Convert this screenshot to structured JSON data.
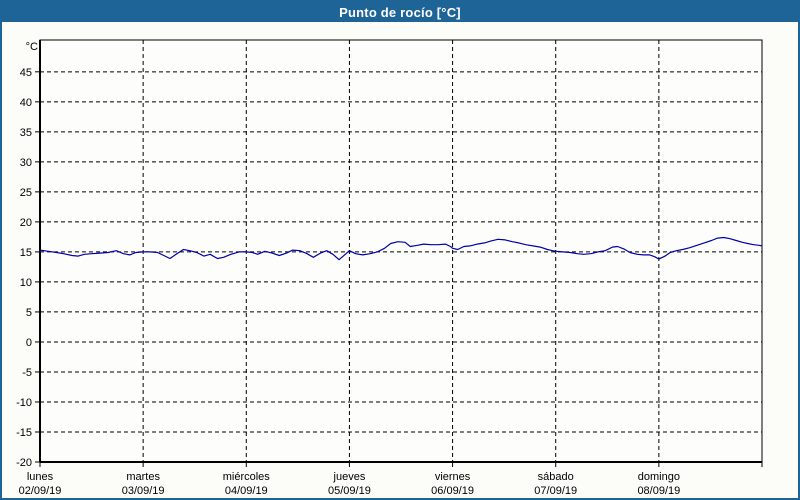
{
  "window": {
    "title": "Punto de rocío [°C]"
  },
  "colors": {
    "frame": "#1e6496",
    "title_text": "#ffffff",
    "background": "#fcfdf8",
    "plot_bg": "#fdfefb",
    "grid": "#000000",
    "line": "#0000aa"
  },
  "chart_data": {
    "type": "line",
    "title": "Punto de rocío [°C]",
    "ylabel": "°C",
    "legend": "none",
    "grid": "dashed",
    "ylim": [
      -20,
      50.3
    ],
    "yticks": {
      "min": -20,
      "max": 45,
      "step": 5
    },
    "xlim": [
      0,
      7
    ],
    "x_days": [
      {
        "name": "lunes",
        "date": "02/09/19"
      },
      {
        "name": "martes",
        "date": "03/09/19"
      },
      {
        "name": "miércoles",
        "date": "04/09/19"
      },
      {
        "name": "jueves",
        "date": "05/09/19"
      },
      {
        "name": "viernes",
        "date": "06/09/19"
      },
      {
        "name": "sábado",
        "date": "07/09/19"
      },
      {
        "name": "domingo",
        "date": "08/09/19"
      }
    ],
    "series": [
      {
        "name": "Punto de rocío",
        "color": "#0000aa",
        "points": [
          [
            0.0,
            15.3
          ],
          [
            0.08,
            15.1
          ],
          [
            0.16,
            14.9
          ],
          [
            0.23,
            14.7
          ],
          [
            0.31,
            14.4
          ],
          [
            0.37,
            14.3
          ],
          [
            0.43,
            14.6
          ],
          [
            0.5,
            14.7
          ],
          [
            0.58,
            14.8
          ],
          [
            0.66,
            14.9
          ],
          [
            0.74,
            15.2
          ],
          [
            0.81,
            14.7
          ],
          [
            0.87,
            14.5
          ],
          [
            0.93,
            14.9
          ],
          [
            1.0,
            15.0
          ],
          [
            1.07,
            15.0
          ],
          [
            1.14,
            14.9
          ],
          [
            1.2,
            14.4
          ],
          [
            1.26,
            13.9
          ],
          [
            1.32,
            14.6
          ],
          [
            1.39,
            15.4
          ],
          [
            1.45,
            15.2
          ],
          [
            1.52,
            14.9
          ],
          [
            1.59,
            14.3
          ],
          [
            1.65,
            14.6
          ],
          [
            1.72,
            13.9
          ],
          [
            1.78,
            14.1
          ],
          [
            1.85,
            14.6
          ],
          [
            1.93,
            15.0
          ],
          [
            2.0,
            15.0
          ],
          [
            2.06,
            14.9
          ],
          [
            2.11,
            14.6
          ],
          [
            2.18,
            15.1
          ],
          [
            2.25,
            14.8
          ],
          [
            2.32,
            14.4
          ],
          [
            2.39,
            14.8
          ],
          [
            2.45,
            15.3
          ],
          [
            2.52,
            15.2
          ],
          [
            2.59,
            14.7
          ],
          [
            2.65,
            14.1
          ],
          [
            2.72,
            14.8
          ],
          [
            2.78,
            15.2
          ],
          [
            2.84,
            14.6
          ],
          [
            2.9,
            13.7
          ],
          [
            2.96,
            14.6
          ],
          [
            3.0,
            15.2
          ],
          [
            3.06,
            14.7
          ],
          [
            3.13,
            14.5
          ],
          [
            3.2,
            14.7
          ],
          [
            3.27,
            15.0
          ],
          [
            3.34,
            15.6
          ],
          [
            3.4,
            16.4
          ],
          [
            3.47,
            16.7
          ],
          [
            3.54,
            16.6
          ],
          [
            3.59,
            15.9
          ],
          [
            3.66,
            16.1
          ],
          [
            3.72,
            16.3
          ],
          [
            3.79,
            16.2
          ],
          [
            3.86,
            16.2
          ],
          [
            3.93,
            16.3
          ],
          [
            3.98,
            15.9
          ],
          [
            4.0,
            15.6
          ],
          [
            4.05,
            15.4
          ],
          [
            4.11,
            15.9
          ],
          [
            4.17,
            16.0
          ],
          [
            4.24,
            16.3
          ],
          [
            4.31,
            16.5
          ],
          [
            4.37,
            16.8
          ],
          [
            4.44,
            17.1
          ],
          [
            4.51,
            17.0
          ],
          [
            4.58,
            16.7
          ],
          [
            4.64,
            16.5
          ],
          [
            4.71,
            16.2
          ],
          [
            4.78,
            16.0
          ],
          [
            4.85,
            15.8
          ],
          [
            4.92,
            15.4
          ],
          [
            4.97,
            15.2
          ],
          [
            5.01,
            15.1
          ],
          [
            5.07,
            15.0
          ],
          [
            5.14,
            14.9
          ],
          [
            5.21,
            14.7
          ],
          [
            5.27,
            14.6
          ],
          [
            5.34,
            14.7
          ],
          [
            5.41,
            15.0
          ],
          [
            5.48,
            15.2
          ],
          [
            5.55,
            15.8
          ],
          [
            5.6,
            15.9
          ],
          [
            5.66,
            15.5
          ],
          [
            5.72,
            14.9
          ],
          [
            5.79,
            14.6
          ],
          [
            5.85,
            14.5
          ],
          [
            5.91,
            14.5
          ],
          [
            5.96,
            14.2
          ],
          [
            6.0,
            13.8
          ],
          [
            6.06,
            14.3
          ],
          [
            6.11,
            14.9
          ],
          [
            6.17,
            15.2
          ],
          [
            6.23,
            15.4
          ],
          [
            6.3,
            15.7
          ],
          [
            6.37,
            16.1
          ],
          [
            6.44,
            16.5
          ],
          [
            6.51,
            16.9
          ],
          [
            6.57,
            17.3
          ],
          [
            6.63,
            17.4
          ],
          [
            6.69,
            17.2
          ],
          [
            6.75,
            16.9
          ],
          [
            6.81,
            16.6
          ],
          [
            6.86,
            16.4
          ],
          [
            6.92,
            16.2
          ],
          [
            6.97,
            16.1
          ],
          [
            7.0,
            16.0
          ]
        ]
      }
    ]
  }
}
